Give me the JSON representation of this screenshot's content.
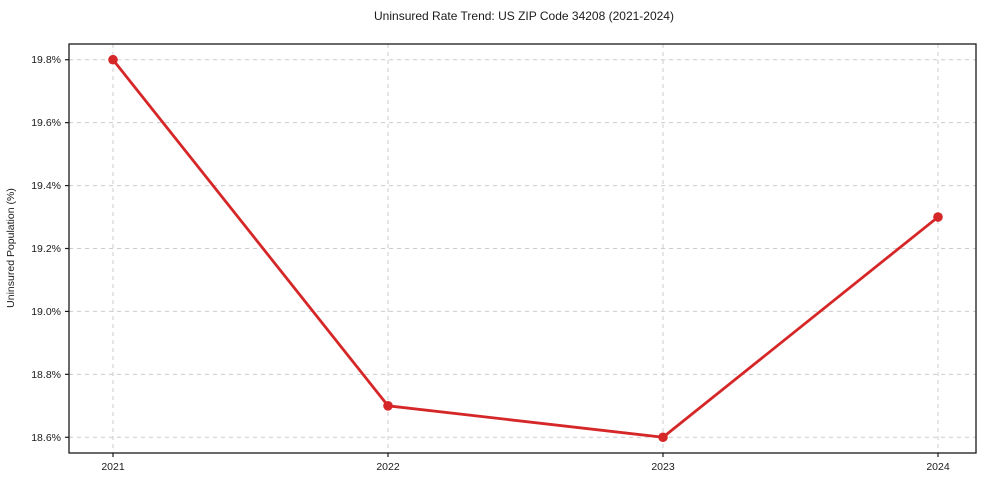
{
  "chart_data": {
    "type": "line",
    "title": "Uninsured Rate Trend: US ZIP Code 34208 (2021-2024)",
    "xlabel": "",
    "ylabel": "Uninsured Population (%)",
    "categories": [
      "2021",
      "2022",
      "2023",
      "2024"
    ],
    "values": [
      19.8,
      18.7,
      18.6,
      19.3
    ],
    "xtick_labels": [
      "2021",
      "2022",
      "2023",
      "2024"
    ],
    "yticks": [
      18.6,
      18.8,
      19.0,
      19.2,
      19.4,
      19.6,
      19.8
    ],
    "ytick_labels": [
      "18.6%",
      "18.8%",
      "19.0%",
      "19.2%",
      "19.4%",
      "19.6%",
      "19.8%"
    ],
    "ylim": [
      18.55,
      19.85
    ],
    "grid": true,
    "grid_style": "dashed",
    "legend_position": "none",
    "line_color": "#d62728",
    "marker": "circle",
    "grid_color": "#cccccc",
    "frame_color": "#1a1a1a",
    "background_color": "#ffffff"
  }
}
